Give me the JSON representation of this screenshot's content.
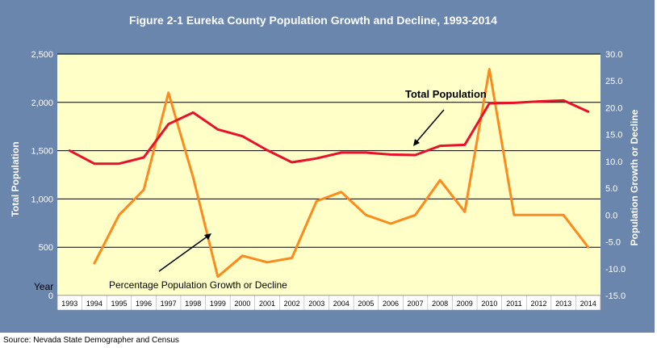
{
  "chart_data": {
    "type": "line",
    "title": "Figure 2-1 Eureka County Population Growth and Decline, 1993-2014",
    "x": [
      "1993",
      "1994",
      "1995",
      "1996",
      "1997",
      "1998",
      "1999",
      "2000",
      "2001",
      "2002",
      "2003",
      "2004",
      "2005",
      "2006",
      "2007",
      "2008",
      "2009",
      "2010",
      "2011",
      "2012",
      "2013",
      "2014"
    ],
    "y_left": {
      "label": "Total Population",
      "ticks": [
        "0",
        "500",
        "1,000",
        "1,500",
        "2,000",
        "2,500"
      ],
      "ylim": [
        0,
        2500
      ]
    },
    "y_right": {
      "label": "Population Growth or Decline",
      "ticks": [
        "-15.0",
        "-10.0",
        "-5.0",
        "0.0",
        "5.0",
        "10.0",
        "15.0",
        "20.0",
        "25.0",
        "30.0"
      ],
      "ylim": [
        -15,
        30
      ]
    },
    "x_label": "Year",
    "series": [
      {
        "name": "Total Population",
        "axis": "left",
        "color": "#e8102a",
        "values": [
          1500,
          1365,
          1365,
          1430,
          1775,
          1895,
          1720,
          1650,
          1505,
          1380,
          1420,
          1480,
          1480,
          1460,
          1455,
          1550,
          1560,
          1990,
          1995,
          2010,
          2020,
          1905
        ]
      },
      {
        "name": "Percentage Population Growth or Decline",
        "axis": "right",
        "color": "#ff8a1c",
        "values": [
          null,
          -9.0,
          0.0,
          4.7,
          22.8,
          7.0,
          -11.5,
          -7.6,
          -8.8,
          -8.0,
          2.6,
          4.3,
          0.0,
          -1.6,
          0.0,
          6.5,
          0.6,
          27.2,
          0.0,
          0.0,
          0.0,
          -6.0
        ]
      }
    ],
    "grid": "horizontal",
    "annotations": [
      "Total Population",
      "Percentage Population Growth or Decline"
    ]
  },
  "footer": {
    "source": "Source: Nevada State Demographer and Census"
  }
}
